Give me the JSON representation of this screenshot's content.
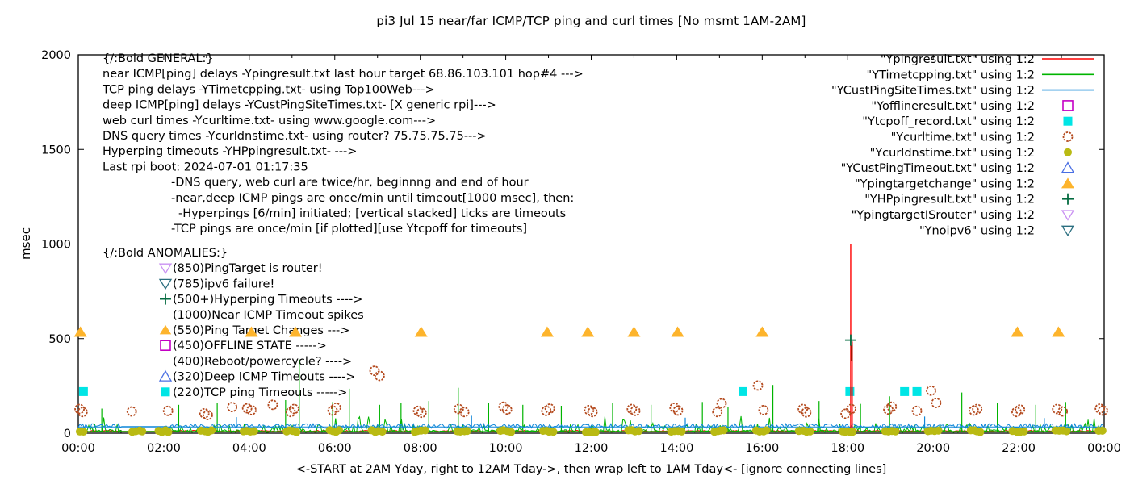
{
  "chart_data": {
    "type": "line",
    "title": "pi3 Jul 15  near/far ICMP/TCP ping and curl times [No msmt 1AM-2AM]",
    "xlabel": "<-START at 2AM Yday, right to 12AM Tday->, then wrap left to 1AM Tday<- [ignore connecting lines]",
    "ylabel": "msec",
    "ylim": [
      0,
      2000
    ],
    "xlim_hours": [
      0,
      24
    ],
    "yticks": [
      0,
      500,
      1000,
      1500,
      2000
    ],
    "xticks": [
      {
        "h": 0,
        "label": "00:00"
      },
      {
        "h": 2,
        "label": "02:00"
      },
      {
        "h": 4,
        "label": "04:00"
      },
      {
        "h": 6,
        "label": "06:00"
      },
      {
        "h": 8,
        "label": "08:00"
      },
      {
        "h": 10,
        "label": "10:00"
      },
      {
        "h": 12,
        "label": "12:00"
      },
      {
        "h": 14,
        "label": "14:00"
      },
      {
        "h": 16,
        "label": "16:00"
      },
      {
        "h": 18,
        "label": "18:00"
      },
      {
        "h": 20,
        "label": "20:00"
      },
      {
        "h": 22,
        "label": "22:00"
      },
      {
        "h": 24,
        "label": "00:00"
      }
    ],
    "grid": false,
    "legend_position": "top-right",
    "legend": [
      {
        "name": "Ypingresult",
        "label": "\"Ypingresult.txt\" using 1:2",
        "sample": "line",
        "color": "#ff0000"
      },
      {
        "name": "YTimetcpping",
        "label": "\"YTimetcpping.txt\" using 1:2",
        "sample": "line",
        "color": "#00b400"
      },
      {
        "name": "YCustPingSiteTimes",
        "label": "\"YCustPingSiteTimes.txt\" using 1:2",
        "sample": "line",
        "color": "#0d86d8"
      },
      {
        "name": "Yofflineresult",
        "label": "\"Yofflineresult.txt\" using 1:2",
        "sample": "square-open",
        "color": "#c400c4"
      },
      {
        "name": "Ytcpoff_record",
        "label": "\"Ytcpoff_record.txt\" using 1:2",
        "sample": "square-filled",
        "color": "#00e5e5"
      },
      {
        "name": "Ycurltime",
        "label": "\"Ycurltime.txt\" using 1:2",
        "sample": "circle-open",
        "color": "#b44a1e"
      },
      {
        "name": "Ycurldnstime",
        "label": "\"Ycurldnstime.txt\" using 1:2",
        "sample": "circle-filled",
        "color": "#b9ba13"
      },
      {
        "name": "YCustPingTimeout",
        "label": "\"YCustPingTimeout.txt\" using 1:2",
        "sample": "triangle-up-open",
        "color": "#4a6fe3"
      },
      {
        "name": "Ypingtargetchange",
        "label": "\"Ypingtargetchange\" using 1:2",
        "sample": "triangle-up-filled",
        "color": "#fdb42c"
      },
      {
        "name": "YHPpingresult",
        "label": "\"YHPpingresult.txt\" using 1:2",
        "sample": "plus",
        "color": "#046b40"
      },
      {
        "name": "YpingtargetISrouter",
        "label": "\"YpingtargetISrouter\" using 1:2",
        "sample": "triangle-down-open",
        "color": "#c990f2"
      },
      {
        "name": "Ynoipv6",
        "label": "\"Ynoipv6\" using 1:2",
        "sample": "triangle-down-open",
        "color": "#2b6f80"
      }
    ],
    "annotations": {
      "general": {
        "heading": "{/:Bold GENERAL:}",
        "lines": [
          "near ICMP[ping] delays -Ypingresult.txt last hour target 68.86.103.101 hop#4 --->",
          "TCP ping delays -YTimetcpping.txt- using Top100Web--->",
          "deep ICMP[ping] delays -YCustPingSiteTimes.txt- [X generic rpi]--->",
          "web curl times -Ycurltime.txt- using www.google.com--->",
          "DNS query times -Ycurldnstime.txt- using router? 75.75.75.75--->",
          "Hyperping timeouts -YHPpingresult.txt- --->",
          "Last rpi boot: 2024-07-01 01:17:35"
        ],
        "notes": [
          {
            "text": "-DNS query, web curl are twice/hr, beginnng and end of hour",
            "extra_indent": 0
          },
          {
            "text": "-near,deep ICMP pings are once/min until timeout[1000 msec], then:",
            "extra_indent": 0
          },
          {
            "text": "-Hyperpings [6/min] initiated; [vertical stacked] ticks are timeouts",
            "extra_indent": 9
          },
          {
            "text": "-TCP pings are once/min [if plotted][use Ytcpoff for timeouts]",
            "extra_indent": 0
          }
        ]
      },
      "anomalies": {
        "heading": "{/:Bold ANOMALIES:}",
        "items": [
          {
            "marker": "triangle-down-open",
            "color": "#c990f2",
            "text": "(850)PingTarget is router!"
          },
          {
            "marker": "triangle-down-open",
            "color": "#2b6f80",
            "text": "(785)ipv6 failure!"
          },
          {
            "marker": "plus",
            "color": "#046b40",
            "text": "(500+)Hyperping Timeouts ---->"
          },
          {
            "marker": "none",
            "color": "",
            "text": "(1000)Near ICMP Timeout spikes"
          },
          {
            "marker": "triangle-up-filled",
            "color": "#fdb42c",
            "text": "(550)Ping Target Changes --->"
          },
          {
            "marker": "square-open",
            "color": "#c400c4",
            "text": "(450)OFFLINE STATE ----->"
          },
          {
            "marker": "none",
            "color": "",
            "text": "(400)Reboot/powercycle? ---->"
          },
          {
            "marker": "triangle-up-open",
            "color": "#4a6fe3",
            "text": "(320)Deep ICMP Timeouts ---->"
          },
          {
            "marker": "square-filled",
            "color": "#00e5e5",
            "text": "(220)TCP ping Timeouts ----->"
          }
        ]
      }
    },
    "series": {
      "no_measurement_gap_hours": [
        1,
        2
      ],
      "ping_target_changes": {
        "marker": "triangle-up-filled",
        "color": "#fdb42c",
        "value": 535,
        "hours": [
          0.05,
          4.05,
          5.08,
          8.02,
          10.97,
          11.92,
          13.0,
          14.02,
          16.0,
          21.97,
          22.93
        ]
      },
      "tcp_ping_timeouts": {
        "marker": "square-filled",
        "color": "#00e5e5",
        "value": 220,
        "hours": [
          0.12,
          15.55,
          18.05,
          19.33,
          19.62
        ]
      },
      "near_icmp_timeout_spikes": {
        "color": "#ff0000",
        "spikes": [
          {
            "h": 18.07,
            "v": 1000
          },
          {
            "h": 18.105,
            "v": 485
          }
        ],
        "burst_rect": {
          "h1": 18.075,
          "h2": 18.1,
          "v1": 380,
          "v2": 465,
          "color": "#8b1a00"
        }
      },
      "hyperping_timeouts": {
        "marker": "plus",
        "color": "#046b40",
        "points": [
          {
            "h": 18.07,
            "v": 492
          }
        ]
      },
      "curl_times": {
        "marker": "circle-open",
        "color": "#b44a1e",
        "points": [
          [
            0.03,
            128
          ],
          [
            0.1,
            112
          ],
          [
            1.25,
            115
          ],
          [
            2.1,
            118
          ],
          [
            2.95,
            105
          ],
          [
            3.03,
            96
          ],
          [
            3.6,
            138
          ],
          [
            3.95,
            132
          ],
          [
            4.05,
            122
          ],
          [
            4.55,
            150
          ],
          [
            4.97,
            112
          ],
          [
            5.05,
            128
          ],
          [
            5.95,
            120
          ],
          [
            6.03,
            135
          ],
          [
            6.93,
            330
          ],
          [
            7.05,
            303
          ],
          [
            7.95,
            118
          ],
          [
            8.03,
            108
          ],
          [
            8.9,
            128
          ],
          [
            9.03,
            112
          ],
          [
            9.95,
            140
          ],
          [
            10.03,
            125
          ],
          [
            10.95,
            118
          ],
          [
            11.03,
            130
          ],
          [
            11.95,
            122
          ],
          [
            12.03,
            112
          ],
          [
            12.95,
            128
          ],
          [
            13.03,
            118
          ],
          [
            13.95,
            135
          ],
          [
            14.03,
            120
          ],
          [
            14.95,
            112
          ],
          [
            15.05,
            158
          ],
          [
            15.9,
            252
          ],
          [
            16.03,
            122
          ],
          [
            16.95,
            128
          ],
          [
            17.03,
            110
          ],
          [
            17.95,
            103
          ],
          [
            18.08,
            128
          ],
          [
            18.95,
            125
          ],
          [
            19.03,
            140
          ],
          [
            19.62,
            118
          ],
          [
            19.95,
            225
          ],
          [
            20.07,
            160
          ],
          [
            20.95,
            120
          ],
          [
            21.03,
            128
          ],
          [
            21.95,
            112
          ],
          [
            22.03,
            125
          ],
          [
            22.9,
            128
          ],
          [
            23.03,
            115
          ],
          [
            23.9,
            130
          ],
          [
            23.97,
            120
          ]
        ]
      },
      "dns_times": {
        "marker": "circle-filled",
        "color": "#b9ba13",
        "cluster_hours": [
          0,
          1.4,
          2,
          3,
          4,
          5,
          6,
          7,
          8,
          9,
          10,
          11,
          12,
          13,
          14,
          15,
          16,
          17,
          18,
          19,
          20,
          21,
          22,
          23,
          24
        ],
        "value_range": [
          5,
          16
        ]
      },
      "tcp_ping_line": {
        "color": "#00b400",
        "base_range": [
          4,
          60
        ],
        "baseline_value": 9,
        "spikes": [
          [
            0.55,
            130
          ],
          [
            2.35,
            150
          ],
          [
            3.25,
            160
          ],
          [
            4.85,
            175
          ],
          [
            5.17,
            390
          ],
          [
            5.95,
            165
          ],
          [
            6.34,
            235
          ],
          [
            7.05,
            150
          ],
          [
            7.55,
            160
          ],
          [
            8.2,
            170
          ],
          [
            8.89,
            240
          ],
          [
            9.6,
            160
          ],
          [
            10.4,
            150
          ],
          [
            11.3,
            145
          ],
          [
            12.5,
            160
          ],
          [
            13.4,
            150
          ],
          [
            14.6,
            165
          ],
          [
            15.2,
            140
          ],
          [
            16.25,
            255
          ],
          [
            17.33,
            170
          ],
          [
            18.3,
            155
          ],
          [
            18.98,
            195
          ],
          [
            20.67,
            215
          ],
          [
            21.5,
            160
          ],
          [
            22.4,
            150
          ],
          [
            23.1,
            165
          ]
        ]
      },
      "deep_icmp_line": {
        "color": "#0d86d8",
        "base_range": [
          26,
          50
        ],
        "baseline_value": 33,
        "spikes": [
          [
            3.7,
            85
          ],
          [
            9.2,
            92
          ],
          [
            14.2,
            82
          ],
          [
            19.8,
            88
          ],
          [
            22.6,
            80
          ]
        ]
      },
      "near_icmp_line": {
        "color": "#ff0000",
        "base_range": [
          8,
          15
        ]
      }
    }
  }
}
